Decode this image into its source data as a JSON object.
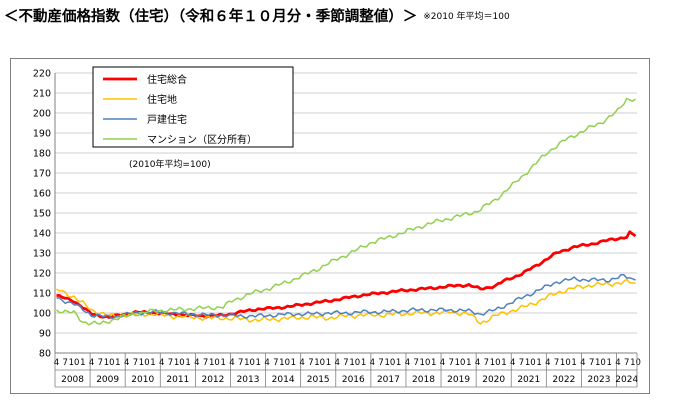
{
  "header": {
    "title": "＜不動産価格指数（住宅）（令和６年１０月分・季節調整値）＞",
    "note": "※2010 年平均＝100"
  },
  "chart_data": {
    "type": "line",
    "title": "",
    "xlabel": "",
    "ylabel": "",
    "base_note": "(2010年平均=100)",
    "ylim": [
      80,
      220
    ],
    "yticks": [
      80,
      90,
      100,
      110,
      120,
      130,
      140,
      150,
      160,
      170,
      180,
      190,
      200,
      210,
      220
    ],
    "grid": "horizontal",
    "legend_position": "top-left",
    "years": [
      "2008",
      "2009",
      "2010",
      "2011",
      "2012",
      "2013",
      "2014",
      "2015",
      "2016",
      "2017",
      "2018",
      "2019",
      "2020",
      "2021",
      "2022",
      "2023",
      "2024"
    ],
    "month_tick_labels": [
      "4",
      "7",
      "10",
      "1"
    ],
    "x_start": "2008-04",
    "x_end": "2024-10",
    "series": [
      {
        "name": "住宅総合",
        "color": "#ff0000",
        "width": 2.8,
        "anchors": [
          [
            "2008-04",
            108.7
          ],
          [
            "2008-10",
            106.0
          ],
          [
            "2009-04",
            99.5
          ],
          [
            "2009-10",
            97.8
          ],
          [
            "2010-01",
            98.8
          ],
          [
            "2010-07",
            100.3
          ],
          [
            "2011-01",
            100.2
          ],
          [
            "2011-07",
            99.5
          ],
          [
            "2012-01",
            98.8
          ],
          [
            "2012-07",
            98.5
          ],
          [
            "2013-01",
            98.8
          ],
          [
            "2013-07",
            100.5
          ],
          [
            "2014-01",
            102.0
          ],
          [
            "2014-07",
            102.5
          ],
          [
            "2015-01",
            103.5
          ],
          [
            "2015-07",
            104.8
          ],
          [
            "2016-01",
            106.0
          ],
          [
            "2016-07",
            107.5
          ],
          [
            "2017-01",
            109.0
          ],
          [
            "2017-07",
            110.0
          ],
          [
            "2018-01",
            111.0
          ],
          [
            "2018-07",
            111.8
          ],
          [
            "2019-01",
            112.5
          ],
          [
            "2019-07",
            113.5
          ],
          [
            "2020-01",
            114.0
          ],
          [
            "2020-05",
            112.0
          ],
          [
            "2020-10",
            113.5
          ],
          [
            "2021-01",
            116.0
          ],
          [
            "2021-07",
            119.5
          ],
          [
            "2022-01",
            124.5
          ],
          [
            "2022-07",
            130.0
          ],
          [
            "2023-01",
            133.0
          ],
          [
            "2023-07",
            134.5
          ],
          [
            "2024-01",
            136.5
          ],
          [
            "2024-07",
            138.0
          ],
          [
            "2024-08",
            140.0
          ],
          [
            "2024-10",
            138.5
          ]
        ],
        "noise": 0.7
      },
      {
        "name": "住宅地",
        "color": "#ffc000",
        "width": 1.5,
        "anchors": [
          [
            "2008-04",
            112.0
          ],
          [
            "2008-10",
            108.0
          ],
          [
            "2009-04",
            101.5
          ],
          [
            "2009-10",
            98.5
          ],
          [
            "2010-01",
            98.5
          ],
          [
            "2010-07",
            99.5
          ],
          [
            "2011-01",
            99.5
          ],
          [
            "2011-07",
            98.5
          ],
          [
            "2012-01",
            98.0
          ],
          [
            "2012-07",
            97.5
          ],
          [
            "2013-01",
            97.5
          ],
          [
            "2013-07",
            97.0
          ],
          [
            "2014-01",
            96.5
          ],
          [
            "2014-07",
            97.0
          ],
          [
            "2015-01",
            97.5
          ],
          [
            "2015-07",
            98.0
          ],
          [
            "2016-01",
            97.5
          ],
          [
            "2016-07",
            98.5
          ],
          [
            "2017-01",
            99.0
          ],
          [
            "2017-07",
            99.0
          ],
          [
            "2018-01",
            99.5
          ],
          [
            "2018-07",
            100.0
          ],
          [
            "2019-01",
            100.0
          ],
          [
            "2019-07",
            100.5
          ],
          [
            "2020-01",
            99.5
          ],
          [
            "2020-05",
            95.0
          ],
          [
            "2020-10",
            98.5
          ],
          [
            "2021-01",
            100.0
          ],
          [
            "2021-07",
            102.5
          ],
          [
            "2022-01",
            106.0
          ],
          [
            "2022-07",
            110.0
          ],
          [
            "2023-01",
            112.5
          ],
          [
            "2023-07",
            114.0
          ],
          [
            "2024-01",
            114.5
          ],
          [
            "2024-07",
            115.5
          ],
          [
            "2024-10",
            115.0
          ]
        ],
        "noise": 1.4
      },
      {
        "name": "戸建住宅",
        "color": "#4f81bd",
        "width": 1.5,
        "anchors": [
          [
            "2008-04",
            107.5
          ],
          [
            "2008-10",
            104.5
          ],
          [
            "2009-04",
            99.0
          ],
          [
            "2009-10",
            98.0
          ],
          [
            "2010-01",
            98.5
          ],
          [
            "2010-07",
            100.0
          ],
          [
            "2011-01",
            100.5
          ],
          [
            "2011-07",
            100.0
          ],
          [
            "2012-01",
            99.5
          ],
          [
            "2012-07",
            99.0
          ],
          [
            "2013-01",
            99.0
          ],
          [
            "2013-07",
            98.5
          ],
          [
            "2014-01",
            98.5
          ],
          [
            "2014-07",
            99.0
          ],
          [
            "2015-01",
            99.5
          ],
          [
            "2015-07",
            99.5
          ],
          [
            "2016-01",
            100.0
          ],
          [
            "2016-07",
            100.0
          ],
          [
            "2017-01",
            100.5
          ],
          [
            "2017-07",
            100.5
          ],
          [
            "2018-01",
            101.0
          ],
          [
            "2018-07",
            101.5
          ],
          [
            "2019-01",
            101.5
          ],
          [
            "2019-07",
            101.5
          ],
          [
            "2020-01",
            101.0
          ],
          [
            "2020-05",
            99.5
          ],
          [
            "2020-10",
            101.5
          ],
          [
            "2021-01",
            103.5
          ],
          [
            "2021-07",
            107.5
          ],
          [
            "2022-01",
            111.5
          ],
          [
            "2022-07",
            115.5
          ],
          [
            "2023-01",
            117.0
          ],
          [
            "2023-07",
            116.5
          ],
          [
            "2024-01",
            116.5
          ],
          [
            "2024-06",
            118.5
          ],
          [
            "2024-10",
            116.5
          ]
        ],
        "noise": 1.2
      },
      {
        "name": "マンション（区分所有）",
        "color": "#92d050",
        "width": 1.5,
        "anchors": [
          [
            "2008-04",
            101.5
          ],
          [
            "2008-10",
            100.0
          ],
          [
            "2009-01",
            95.5
          ],
          [
            "2009-07",
            94.5
          ],
          [
            "2010-01",
            97.5
          ],
          [
            "2010-07",
            99.5
          ],
          [
            "2011-01",
            101.0
          ],
          [
            "2011-07",
            101.5
          ],
          [
            "2012-01",
            102.0
          ],
          [
            "2012-07",
            102.5
          ],
          [
            "2013-01",
            103.0
          ],
          [
            "2013-04",
            106.0
          ],
          [
            "2013-10",
            109.5
          ],
          [
            "2014-04",
            112.0
          ],
          [
            "2014-10",
            115.0
          ],
          [
            "2015-04",
            118.5
          ],
          [
            "2015-10",
            122.5
          ],
          [
            "2016-04",
            127.0
          ],
          [
            "2016-10",
            131.0
          ],
          [
            "2017-04",
            135.5
          ],
          [
            "2017-10",
            138.0
          ],
          [
            "2018-04",
            141.0
          ],
          [
            "2018-10",
            144.0
          ],
          [
            "2019-04",
            146.5
          ],
          [
            "2019-10",
            148.5
          ],
          [
            "2020-04",
            151.0
          ],
          [
            "2020-10",
            156.5
          ],
          [
            "2021-04",
            164.0
          ],
          [
            "2021-10",
            172.0
          ],
          [
            "2022-04",
            180.5
          ],
          [
            "2022-10",
            186.5
          ],
          [
            "2023-04",
            191.0
          ],
          [
            "2023-10",
            195.0
          ],
          [
            "2024-04",
            201.0
          ],
          [
            "2024-07",
            207.0
          ],
          [
            "2024-10",
            207.0
          ]
        ],
        "noise": 1.3
      }
    ]
  }
}
